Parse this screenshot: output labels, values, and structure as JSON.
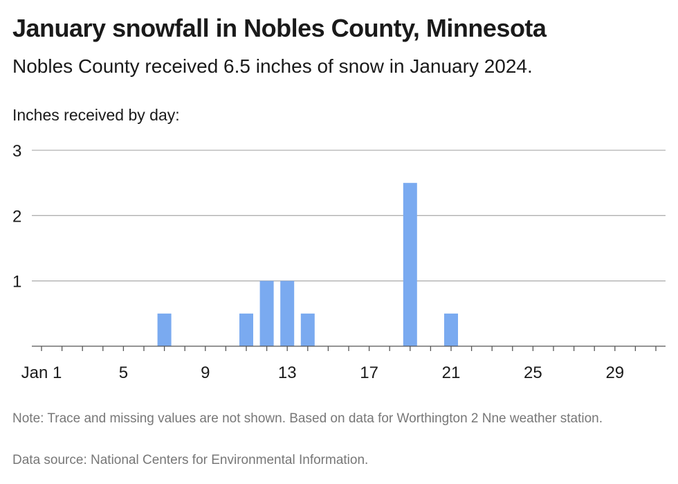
{
  "header": {
    "title": "January snowfall in Nobles County, Minnesota",
    "subtitle": "Nobles County received 6.5 inches of snow in January 2024."
  },
  "footer": {
    "note": "Note: Trace and missing values are not shown. Based on data for Worthington 2 Nne weather station.",
    "source": "Data source: National Centers for Environmental Information."
  },
  "colors": {
    "bar": "#7aaaf0",
    "grid": "#b0b0b0",
    "axis": "#555555",
    "text": "#1a1a1a",
    "muted": "#777777"
  },
  "chart_data": {
    "type": "bar",
    "ylabel": "Inches received by day:",
    "xlabel": "",
    "x": [
      1,
      2,
      3,
      4,
      5,
      6,
      7,
      8,
      9,
      10,
      11,
      12,
      13,
      14,
      15,
      16,
      17,
      18,
      19,
      20,
      21,
      22,
      23,
      24,
      25,
      26,
      27,
      28,
      29,
      30,
      31
    ],
    "values": [
      0,
      0,
      0,
      0,
      0,
      0,
      0.5,
      0,
      0,
      0,
      0.5,
      1,
      1,
      0.5,
      0,
      0,
      0,
      0,
      2.5,
      0,
      0.5,
      0,
      0,
      0,
      0,
      0,
      0,
      0,
      0,
      0,
      0
    ],
    "xlim": [
      1,
      31
    ],
    "ylim": [
      0,
      3
    ],
    "x_ticks": [
      1,
      5,
      9,
      13,
      17,
      21,
      25,
      29
    ],
    "x_tick_labels": [
      "Jan 1",
      "5",
      "9",
      "13",
      "17",
      "21",
      "25",
      "29"
    ],
    "y_ticks": [
      1,
      2,
      3
    ],
    "y_tick_labels": [
      "1",
      "2",
      "3"
    ],
    "grid": true,
    "legend": "none"
  }
}
